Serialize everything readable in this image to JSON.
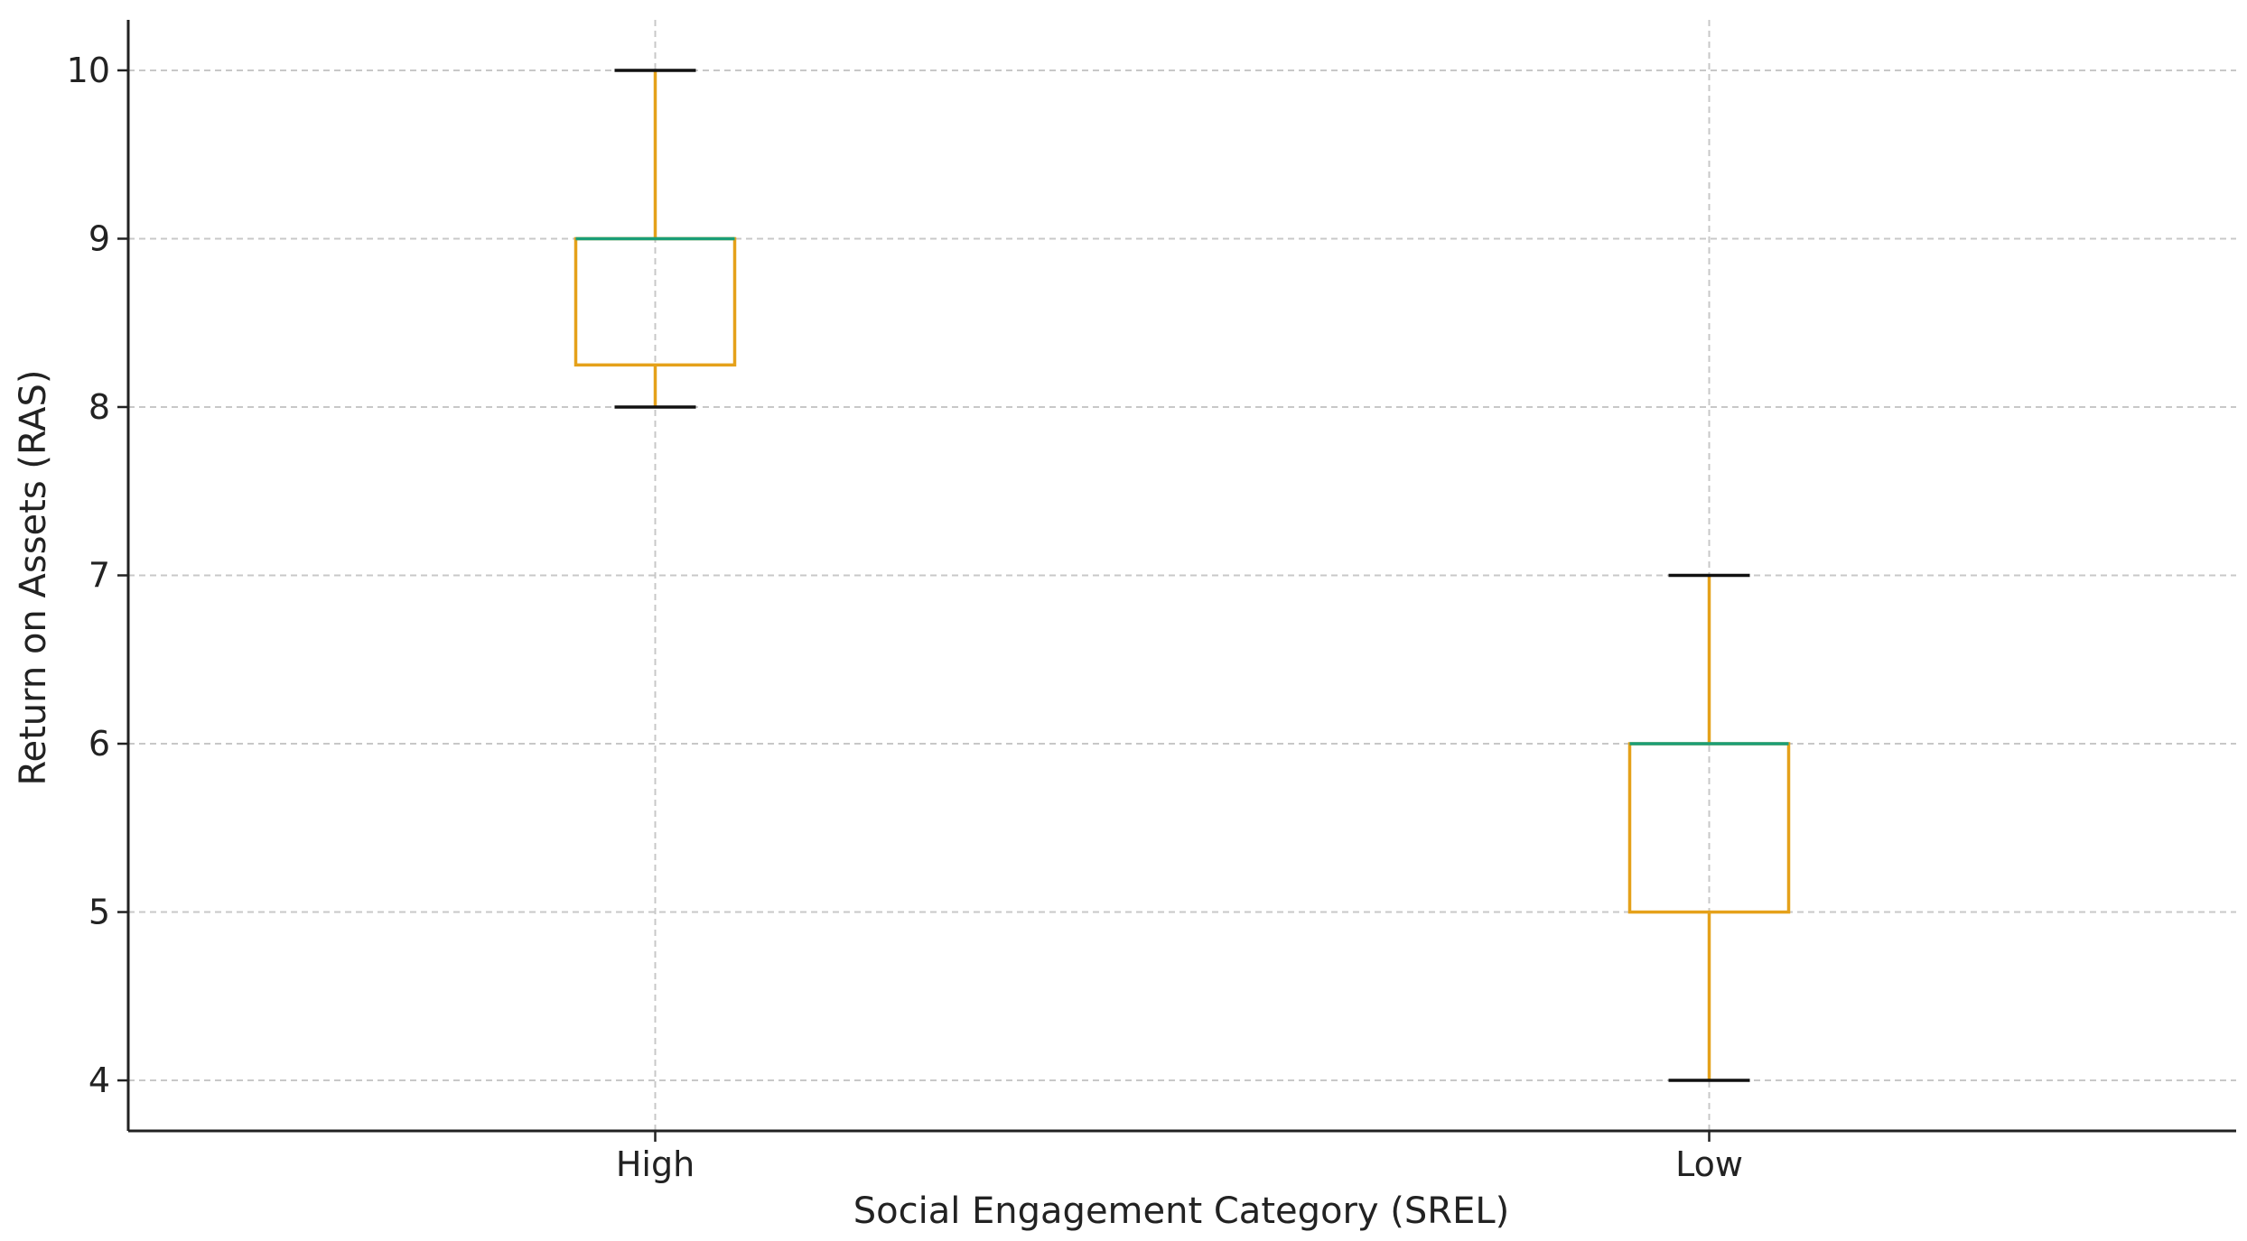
{
  "chart_data": {
    "type": "box",
    "title": "",
    "xlabel": "Social Engagement Category (SREL)",
    "ylabel": "Return on Assets (RAS)",
    "categories": [
      "High",
      "Low"
    ],
    "boxes": [
      {
        "label": "High",
        "whisker_low": 8,
        "q1": 8.25,
        "median": 9,
        "q3": 9,
        "whisker_high": 10
      },
      {
        "label": "Low",
        "whisker_low": 4,
        "q1": 5,
        "median": 6,
        "q3": 6,
        "whisker_high": 7
      }
    ],
    "yticks": [
      4,
      5,
      6,
      7,
      8,
      9,
      10
    ],
    "ylim": [
      3.7,
      10.3
    ],
    "grid": true,
    "colors": {
      "box": "#e5a11a",
      "median": "#1a9e77",
      "cap": "#111111",
      "grid": "#c8c8c8",
      "axis": "#222222"
    }
  }
}
